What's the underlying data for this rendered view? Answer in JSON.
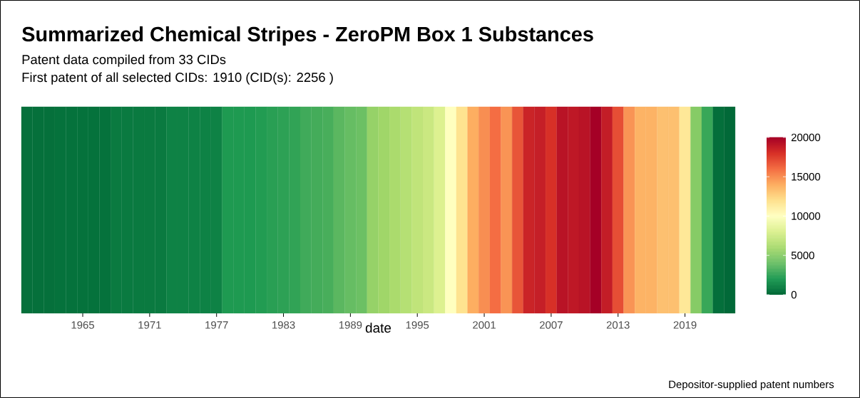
{
  "chart_data": {
    "type": "heatmap",
    "title": "Summarized Chemical Stripes - ZeroPM Box 1 Substances",
    "subtitle": "Patent data compiled from 33 CIDs",
    "annotations": [
      "First patent of all selected CIDs: 1910 (CID(s): 2256 )",
      "Depositor-supplied patent numbers"
    ],
    "xlabel": "date",
    "categories": [
      null,
      null,
      null,
      null,
      null,
      "1965",
      null,
      null,
      null,
      null,
      null,
      "1971",
      null,
      null,
      null,
      null,
      null,
      "1977",
      null,
      null,
      null,
      null,
      null,
      "1983",
      null,
      null,
      null,
      null,
      null,
      "1989",
      null,
      null,
      null,
      null,
      null,
      "1995",
      null,
      null,
      null,
      null,
      null,
      "2001",
      null,
      null,
      null,
      null,
      null,
      "2007",
      null,
      null,
      null,
      null,
      null,
      "2013",
      null,
      null,
      null,
      null,
      null,
      "2019",
      null,
      null,
      null,
      null
    ],
    "y_categories": [
      null
    ],
    "cells": [
      [
        350,
        350,
        350,
        400,
        400,
        400,
        400,
        400,
        750,
        750,
        750,
        750,
        750,
        1100,
        1100,
        1100,
        1100,
        1100,
        2100,
        2100,
        2100,
        2200,
        2400,
        2500,
        2600,
        3000,
        3100,
        3200,
        3700,
        4000,
        4200,
        5500,
        5800,
        6200,
        6600,
        7000,
        7400,
        8200,
        10000,
        11800,
        14000,
        15000,
        16000,
        14800,
        16800,
        18500,
        18700,
        18000,
        19200,
        19000,
        19200,
        20000,
        18800,
        17000,
        14800,
        13800,
        13800,
        13300,
        13300,
        11500,
        5000,
        2800,
        300,
        50
      ]
    ],
    "clim": [
      0,
      20000
    ],
    "cticks": [
      0,
      5000,
      10000,
      15000,
      20000
    ]
  }
}
